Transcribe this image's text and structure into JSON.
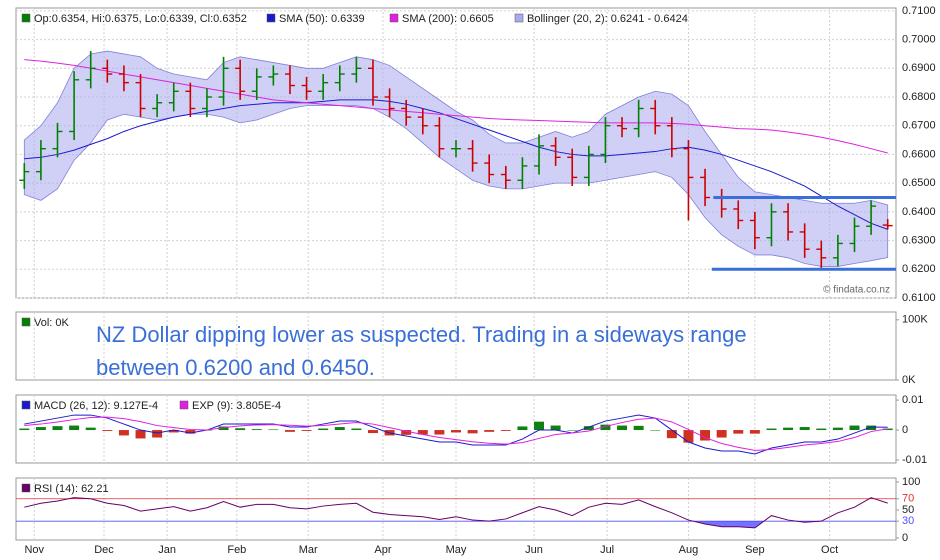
{
  "x_axis": {
    "x": [
      0,
      1,
      2,
      3,
      4,
      5,
      6,
      7,
      8,
      9,
      10,
      11,
      12,
      13,
      14,
      15,
      16,
      17,
      18,
      19,
      20,
      21,
      22,
      23,
      24,
      25,
      26,
      27,
      28,
      29,
      30,
      31,
      32,
      33,
      34,
      35,
      36,
      37,
      38,
      39,
      40,
      41,
      42,
      43,
      44,
      45,
      46,
      47,
      48,
      49,
      50,
      51,
      52
    ],
    "xlim": [
      -0.5,
      52.5
    ],
    "xticks": [
      {
        "value": 0.6,
        "label": "Nov"
      },
      {
        "value": 4.8,
        "label": "Dec"
      },
      {
        "value": 8.6,
        "label": "Jan"
      },
      {
        "value": 12.8,
        "label": "Feb"
      },
      {
        "value": 17.1,
        "label": "Mar"
      },
      {
        "value": 21.6,
        "label": "Apr"
      },
      {
        "value": 26.0,
        "label": "May"
      },
      {
        "value": 30.7,
        "label": "Jun"
      },
      {
        "value": 35.1,
        "label": "Jul"
      },
      {
        "value": 40.0,
        "label": "Aug"
      },
      {
        "value": 44.0,
        "label": "Sep"
      },
      {
        "value": 48.5,
        "label": "Oct"
      }
    ]
  },
  "chart_data": [
    {
      "type": "ohlc",
      "legend": "Op:0.6354, Hi:0.6375, Lo:0.6339, Cl:0.6352",
      "legend_color": "#008000",
      "color_up": "#008000",
      "color_down": "#cc0000",
      "open": [
        0.651,
        0.654,
        0.662,
        0.668,
        0.686,
        0.69,
        0.688,
        0.685,
        0.676,
        0.678,
        0.682,
        0.676,
        0.68,
        0.69,
        0.682,
        0.687,
        0.688,
        0.684,
        0.682,
        0.685,
        0.688,
        0.69,
        0.68,
        0.676,
        0.673,
        0.67,
        0.662,
        0.662,
        0.657,
        0.653,
        0.651,
        0.656,
        0.663,
        0.659,
        0.652,
        0.66,
        0.67,
        0.669,
        0.676,
        0.67,
        0.662,
        0.652,
        0.645,
        0.641,
        0.637,
        0.631,
        0.64,
        0.633,
        0.627,
        0.624,
        0.629,
        0.635,
        0.6354
      ],
      "high": [
        0.657,
        0.665,
        0.671,
        0.689,
        0.696,
        0.693,
        0.691,
        0.688,
        0.681,
        0.685,
        0.685,
        0.683,
        0.694,
        0.693,
        0.69,
        0.691,
        0.691,
        0.687,
        0.688,
        0.691,
        0.694,
        0.693,
        0.683,
        0.679,
        0.676,
        0.673,
        0.665,
        0.665,
        0.66,
        0.656,
        0.659,
        0.667,
        0.666,
        0.662,
        0.663,
        0.673,
        0.673,
        0.679,
        0.679,
        0.673,
        0.665,
        0.655,
        0.648,
        0.644,
        0.64,
        0.643,
        0.643,
        0.636,
        0.63,
        0.632,
        0.638,
        0.644,
        0.6375
      ],
      "low": [
        0.648,
        0.651,
        0.659,
        0.665,
        0.683,
        0.685,
        0.682,
        0.673,
        0.673,
        0.675,
        0.673,
        0.673,
        0.677,
        0.679,
        0.679,
        0.684,
        0.681,
        0.679,
        0.679,
        0.682,
        0.685,
        0.677,
        0.673,
        0.67,
        0.667,
        0.659,
        0.659,
        0.654,
        0.65,
        0.648,
        0.648,
        0.653,
        0.656,
        0.649,
        0.649,
        0.657,
        0.666,
        0.666,
        0.667,
        0.659,
        0.637,
        0.642,
        0.638,
        0.634,
        0.627,
        0.628,
        0.63,
        0.624,
        0.62,
        0.621,
        0.626,
        0.632,
        0.6339
      ],
      "close": [
        0.654,
        0.662,
        0.668,
        0.686,
        0.69,
        0.688,
        0.685,
        0.676,
        0.678,
        0.682,
        0.676,
        0.68,
        0.69,
        0.682,
        0.687,
        0.688,
        0.684,
        0.682,
        0.685,
        0.688,
        0.69,
        0.68,
        0.676,
        0.673,
        0.67,
        0.662,
        0.662,
        0.657,
        0.653,
        0.651,
        0.656,
        0.663,
        0.659,
        0.652,
        0.66,
        0.67,
        0.669,
        0.676,
        0.67,
        0.662,
        0.652,
        0.645,
        0.641,
        0.637,
        0.631,
        0.64,
        0.633,
        0.627,
        0.624,
        0.629,
        0.635,
        0.642,
        0.6352
      ],
      "band": {
        "name": "Bollinger (20, 2): 0.6241 - 0.6424",
        "color": "#aaaaf0",
        "upper": [
          0.665,
          0.67,
          0.678,
          0.69,
          0.695,
          0.696,
          0.695,
          0.694,
          0.69,
          0.688,
          0.687,
          0.686,
          0.692,
          0.694,
          0.693,
          0.692,
          0.691,
          0.69,
          0.69,
          0.692,
          0.694,
          0.693,
          0.691,
          0.687,
          0.683,
          0.679,
          0.675,
          0.672,
          0.667,
          0.664,
          0.664,
          0.666,
          0.668,
          0.666,
          0.668,
          0.674,
          0.677,
          0.68,
          0.682,
          0.681,
          0.677,
          0.668,
          0.66,
          0.652,
          0.647,
          0.646,
          0.645,
          0.644,
          0.643,
          0.643,
          0.643,
          0.644,
          0.6424
        ],
        "lower": [
          0.646,
          0.644,
          0.648,
          0.658,
          0.664,
          0.672,
          0.674,
          0.673,
          0.672,
          0.673,
          0.674,
          0.674,
          0.673,
          0.671,
          0.672,
          0.674,
          0.676,
          0.677,
          0.677,
          0.677,
          0.677,
          0.676,
          0.673,
          0.669,
          0.664,
          0.659,
          0.655,
          0.651,
          0.649,
          0.648,
          0.648,
          0.649,
          0.65,
          0.65,
          0.65,
          0.651,
          0.652,
          0.653,
          0.654,
          0.652,
          0.646,
          0.638,
          0.632,
          0.628,
          0.625,
          0.625,
          0.624,
          0.622,
          0.621,
          0.621,
          0.622,
          0.623,
          0.6241
        ]
      },
      "series": [
        {
          "name": "SMA (50): 0.6339",
          "color": "#1a1acc",
          "values": [
            0.6585,
            0.659,
            0.66,
            0.6615,
            0.6635,
            0.6655,
            0.668,
            0.67,
            0.6715,
            0.673,
            0.674,
            0.675,
            0.676,
            0.677,
            0.6775,
            0.678,
            0.678,
            0.678,
            0.6785,
            0.679,
            0.679,
            0.679,
            0.6785,
            0.6775,
            0.676,
            0.6745,
            0.6725,
            0.6705,
            0.6685,
            0.6665,
            0.6645,
            0.6625,
            0.661,
            0.66,
            0.6595,
            0.6595,
            0.66,
            0.6605,
            0.661,
            0.662,
            0.6625,
            0.6615,
            0.66,
            0.658,
            0.656,
            0.654,
            0.6515,
            0.649,
            0.6455,
            0.642,
            0.639,
            0.636,
            0.6339
          ]
        },
        {
          "name": "SMA (200): 0.6605",
          "color": "#e020e0",
          "values": [
            0.693,
            0.6925,
            0.6918,
            0.691,
            0.69,
            0.689,
            0.688,
            0.687,
            0.686,
            0.685,
            0.684,
            0.683,
            0.682,
            0.681,
            0.68,
            0.679,
            0.6785,
            0.678,
            0.6775,
            0.677,
            0.6765,
            0.676,
            0.6755,
            0.675,
            0.6745,
            0.674,
            0.6735,
            0.673,
            0.6725,
            0.6722,
            0.672,
            0.6718,
            0.6716,
            0.6714,
            0.6712,
            0.671,
            0.671,
            0.671,
            0.671,
            0.6708,
            0.6705,
            0.67,
            0.6695,
            0.669,
            0.6688,
            0.6685,
            0.6678,
            0.667,
            0.666,
            0.6648,
            0.6635,
            0.662,
            0.6605
          ]
        }
      ],
      "hlines": [
        {
          "value": 0.645,
          "xlim": [
            41.5,
            52.5
          ],
          "color": "#3a6fd8"
        },
        {
          "value": 0.62,
          "xlim": [
            41.4,
            52.5
          ],
          "color": "#3a6fd8"
        }
      ],
      "ylim": [
        0.61,
        0.711
      ],
      "yticks": [
        {
          "value": 0.61,
          "label": "0.6100"
        },
        {
          "value": 0.62,
          "label": "0.6200"
        },
        {
          "value": 0.63,
          "label": "0.6300"
        },
        {
          "value": 0.64,
          "label": "0.6400"
        },
        {
          "value": 0.65,
          "label": "0.6500"
        },
        {
          "value": 0.66,
          "label": "0.6600"
        },
        {
          "value": 0.67,
          "label": "0.6700"
        },
        {
          "value": 0.68,
          "label": "0.6800"
        },
        {
          "value": 0.69,
          "label": "0.6900"
        },
        {
          "value": 0.7,
          "label": "0.7000"
        },
        {
          "value": 0.71,
          "label": "0.7100"
        }
      ],
      "grid": true,
      "watermark": "© findata.co.nz"
    },
    {
      "type": "volume",
      "legend": "Vol: 0K",
      "legend_color": "#008000",
      "ylim": [
        0,
        113000
      ],
      "yticks": [
        {
          "value": 0,
          "label": "0K"
        },
        {
          "value": 100000,
          "label": "100K"
        }
      ],
      "annotation": [
        "NZ Dollar dipping lower as suspected. Trading in a sideways range",
        "between 0.6200 and 0.6450."
      ],
      "annotation_color": "#3a6fd8"
    },
    {
      "type": "macd",
      "series": [
        {
          "name": "MACD (26, 12): 9.127E-4",
          "color": "#1a1acc",
          "values": [
            0.002,
            0.003,
            0.004,
            0.005,
            0.005,
            0.004,
            0.002,
            0.0,
            -0.001,
            0.0,
            -0.001,
            0.0,
            0.002,
            0.002,
            0.002,
            0.002,
            0.001,
            0.001,
            0.002,
            0.003,
            0.003,
            0.001,
            -0.001,
            -0.002,
            -0.003,
            -0.004,
            -0.004,
            -0.005,
            -0.005,
            -0.005,
            -0.003,
            0.0,
            0.0,
            -0.001,
            0.001,
            0.003,
            0.004,
            0.005,
            0.004,
            0.0,
            -0.004,
            -0.006,
            -0.007,
            -0.007,
            -0.008,
            -0.006,
            -0.005,
            -0.004,
            -0.004,
            -0.003,
            -0.001,
            0.001,
            0.0009127
          ]
        },
        {
          "name": "EXP (9): 3.805E-4",
          "color": "#e020e0",
          "values": [
            0.0015,
            0.002,
            0.0027,
            0.0035,
            0.0042,
            0.0043,
            0.0038,
            0.0028,
            0.0015,
            0.0008,
            0.0002,
            0.0,
            0.0008,
            0.0014,
            0.0017,
            0.0018,
            0.0016,
            0.0013,
            0.0015,
            0.002,
            0.0025,
            0.002,
            0.0008,
            -0.0004,
            -0.0015,
            -0.0025,
            -0.0032,
            -0.0039,
            -0.0044,
            -0.0047,
            -0.0042,
            -0.0028,
            -0.0015,
            -0.001,
            -0.0003,
            0.0012,
            0.0025,
            0.0036,
            0.004,
            0.0027,
            0.0002,
            -0.0025,
            -0.0045,
            -0.0058,
            -0.0068,
            -0.0065,
            -0.0058,
            -0.005,
            -0.0045,
            -0.0038,
            -0.0025,
            -0.0005,
            0.0003805
          ]
        }
      ],
      "histogram": {
        "color_up": "#108010",
        "color_down": "#d03020",
        "values": [
          0.0005,
          0.001,
          0.0013,
          0.0015,
          0.0008,
          -0.0003,
          -0.0018,
          -0.0028,
          -0.0025,
          -0.0008,
          -0.0012,
          0.0,
          0.0012,
          0.0006,
          0.0003,
          0.0002,
          -0.0006,
          -0.0003,
          0.0005,
          0.001,
          0.0005,
          -0.001,
          -0.0018,
          -0.0016,
          -0.0015,
          -0.0015,
          -0.0008,
          -0.0011,
          -0.0006,
          -0.0003,
          0.0012,
          0.0028,
          0.0015,
          0.0,
          0.0013,
          0.0018,
          0.0015,
          0.0014,
          0.0,
          -0.0027,
          -0.0042,
          -0.0035,
          -0.0025,
          -0.0012,
          -0.0012,
          0.0005,
          0.0008,
          0.001,
          0.0005,
          0.0008,
          0.0015,
          0.0015,
          0.0005
        ]
      },
      "ylim": [
        -0.011,
        0.0117
      ],
      "yticks": [
        -0.01,
        0,
        0.01
      ]
    },
    {
      "type": "rsi",
      "series": [
        {
          "name": "RSI (14): 62.21",
          "color": "#660066",
          "values": [
            55,
            62,
            66,
            72,
            70,
            62,
            58,
            48,
            52,
            56,
            48,
            54,
            65,
            55,
            60,
            60,
            54,
            52,
            57,
            60,
            62,
            46,
            42,
            40,
            38,
            33,
            38,
            32,
            30,
            34,
            45,
            56,
            50,
            40,
            55,
            62,
            60,
            68,
            56,
            45,
            32,
            25,
            20,
            20,
            18,
            40,
            32,
            28,
            30,
            45,
            55,
            72,
            62.21
          ]
        }
      ],
      "levels": [
        {
          "value": 70,
          "color": "#e03030",
          "fill": "#ff5050"
        },
        {
          "value": 30,
          "color": "#5050ff",
          "fill": "#5050ff"
        }
      ],
      "ylim": [
        -3.6,
        107.1
      ],
      "yticks": [
        0,
        30,
        50,
        70,
        100
      ]
    }
  ]
}
